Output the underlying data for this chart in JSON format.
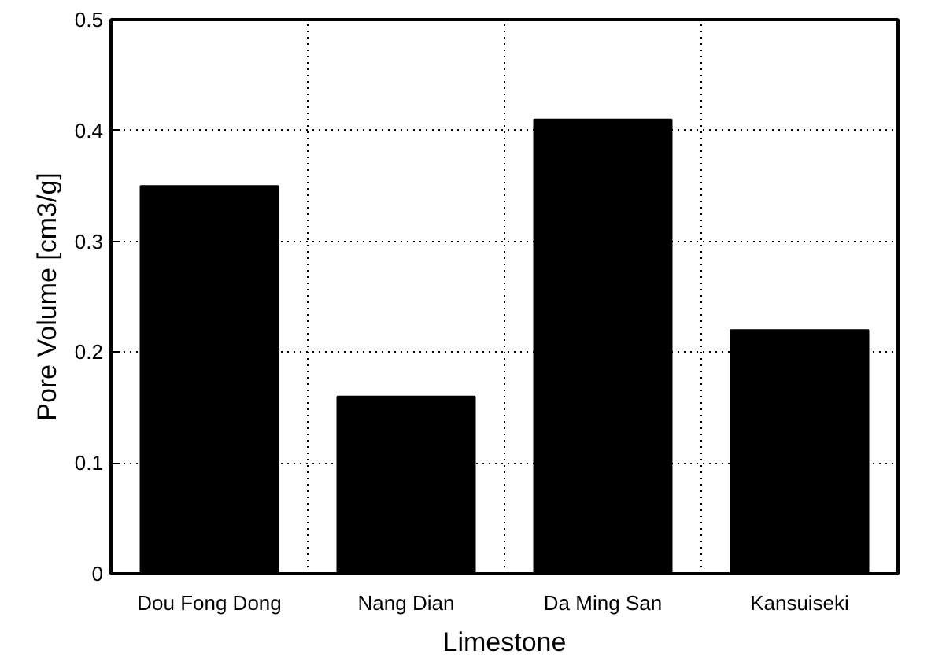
{
  "chart_data": {
    "type": "bar",
    "xlabel": "Limestone",
    "ylabel": "Pore Volume [cm3/g]",
    "categories": [
      "Dou Fong Dong",
      "Nang Dian",
      "Da Ming San",
      "Kansuiseki"
    ],
    "values": [
      0.35,
      0.16,
      0.41,
      0.22
    ],
    "color": "#000000",
    "ylim": [
      0,
      0.5
    ],
    "yticks": [
      0,
      0.1,
      0.2,
      0.3,
      0.4,
      0.5
    ],
    "grid": true
  }
}
